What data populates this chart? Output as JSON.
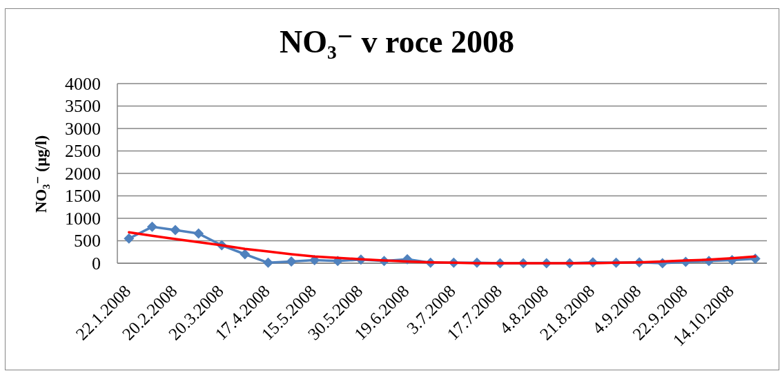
{
  "chart_data": {
    "type": "line",
    "title": "NO₃⁻ v roce 2008",
    "ylabel": "NO₃⁻ (µg/l)",
    "categories": [
      "22.1.2008",
      null,
      "20.2.2008",
      null,
      "20.3.2008",
      null,
      "17.4.2008",
      null,
      "15.5.2008",
      null,
      "30.5.2008",
      null,
      "19.6.2008",
      null,
      "3.7.2008",
      null,
      "17.7.2008",
      null,
      "4.8.2008",
      null,
      "21.8.2008",
      null,
      "4.9.2008",
      null,
      "22.9.2008",
      null,
      "14.10.2008",
      null
    ],
    "series": [
      {
        "color": "#4f81bd",
        "values": [
          550,
          810,
          740,
          660,
          400,
          200,
          10,
          40,
          70,
          50,
          80,
          50,
          90,
          10,
          10,
          10,
          0,
          0,
          0,
          0,
          20,
          10,
          20,
          0,
          30,
          50,
          70,
          100
        ]
      },
      {
        "type": "line",
        "color": "#ff0000",
        "marker": "none",
        "values": [
          690,
          610,
          540,
          470,
          400,
          320,
          260,
          200,
          150,
          120,
          90,
          60,
          40,
          20,
          10,
          0,
          0,
          0,
          0,
          0,
          0,
          10,
          20,
          40,
          60,
          80,
          110,
          150
        ]
      }
    ],
    "ylim": [
      0,
      4000
    ],
    "yticks": [
      0,
      500,
      1000,
      1500,
      2000,
      2500,
      3000,
      3500,
      4000
    ],
    "grid": "y",
    "marker": "diamond"
  }
}
